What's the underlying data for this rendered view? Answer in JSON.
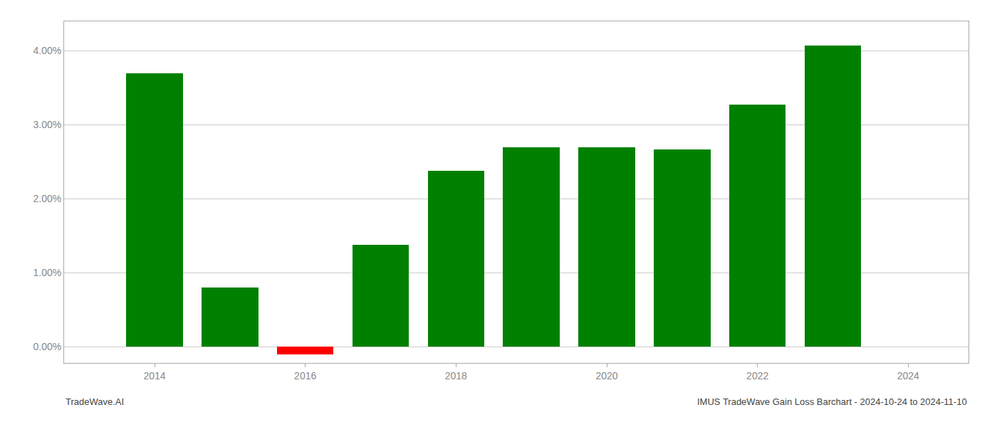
{
  "chart_data": {
    "type": "bar",
    "x": [
      2014,
      2015,
      2016,
      2017,
      2018,
      2019,
      2020,
      2021,
      2022,
      2023
    ],
    "values": [
      0.037,
      0.008,
      -0.001,
      0.0138,
      0.0238,
      0.027,
      0.027,
      0.0267,
      0.0327,
      0.0407
    ],
    "colors": [
      "#008000",
      "#008000",
      "#ff0000",
      "#008000",
      "#008000",
      "#008000",
      "#008000",
      "#008000",
      "#008000",
      "#008000"
    ],
    "xlim": [
      2012.8,
      2024.8
    ],
    "xticks": [
      2014,
      2016,
      2018,
      2020,
      2022,
      2024
    ],
    "ylim": [
      -0.0022,
      0.044
    ],
    "yticks": [
      {
        "value": 0.0,
        "label": "0.00%"
      },
      {
        "value": 0.01,
        "label": "1.00%"
      },
      {
        "value": 0.02,
        "label": "2.00%"
      },
      {
        "value": 0.03,
        "label": "3.00%"
      },
      {
        "value": 0.04,
        "label": "4.00%"
      }
    ],
    "grid": true,
    "annotations": [
      "TradeWave.AI",
      "IMUS TradeWave Gain Loss Barchart - 2024-10-24 to 2024-11-10"
    ]
  }
}
